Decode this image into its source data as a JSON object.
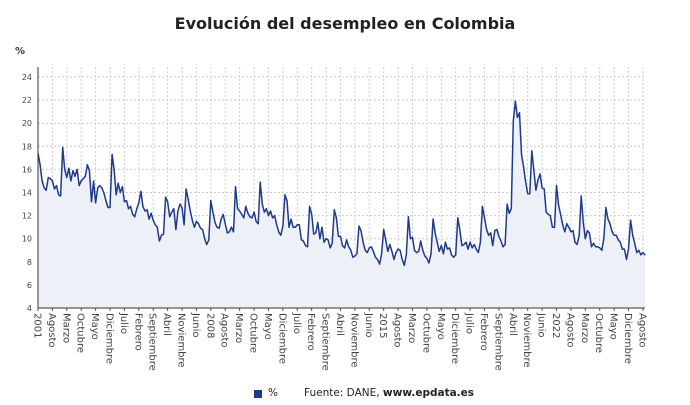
{
  "chart_data": {
    "type": "area",
    "title": "Evolución del desempleo en Colombia",
    "ylabel": "%",
    "ylim": [
      4,
      24
    ],
    "yticks": [
      4,
      6,
      8,
      10,
      12,
      14,
      16,
      18,
      20,
      22,
      24
    ],
    "grid": true,
    "line_color": "#1f3a8a",
    "fill_color": "#eef0f8",
    "x_tick_labels": [
      "2001",
      "Agosto",
      "Marzo",
      "Octubre",
      "Mayo",
      "Diciembre",
      "Julio",
      "Febrero",
      "Septiembre",
      "Abril",
      "Noviembre",
      "Junio",
      "2008",
      "Agosto",
      "Marzo",
      "Octubre",
      "Mayo",
      "Diciembre",
      "Julio",
      "Febrero",
      "Septiembre",
      "Abril",
      "Noviembre",
      "Junio",
      "2015",
      "Agosto",
      "Marzo",
      "Octubre",
      "Mayo",
      "Diciembre",
      "Julio",
      "Febrero",
      "Septiembre",
      "Abril",
      "Noviembre",
      "Junio",
      "2022",
      "Agosto",
      "Marzo",
      "Octubre",
      "Mayo",
      "Diciembre",
      "Agosto"
    ],
    "series": [
      {
        "name": "%",
        "values_by_year": {
          "2001": [
            17.4,
            16.4,
            15.0,
            14.4,
            14.2,
            15.3,
            15.2,
            15.0,
            14.3,
            14.6,
            13.8,
            13.7
          ],
          "2002": [
            17.9,
            16.0,
            15.3,
            16.1,
            15.0,
            15.9,
            15.4,
            16.0,
            14.6,
            15.0,
            15.2,
            15.4
          ],
          "2003": [
            16.4,
            15.9,
            13.2,
            15.0,
            13.1,
            14.4,
            14.6,
            14.4,
            14.0,
            13.3,
            12.7,
            12.7
          ],
          "2004": [
            17.3,
            16.0,
            13.8,
            14.8,
            14.0,
            14.5,
            13.2,
            13.3,
            12.6,
            12.8,
            12.1,
            11.9
          ],
          "2005": [
            12.6,
            13.1,
            14.1,
            12.8,
            12.4,
            12.5,
            11.7,
            12.2,
            11.6,
            11.2,
            11.0,
            9.8
          ],
          "2006": [
            10.3,
            10.4,
            13.6,
            13.2,
            11.9,
            12.3,
            12.6,
            10.8,
            12.4,
            13.0,
            12.7,
            11.2
          ],
          "2007": [
            14.3,
            13.4,
            12.4,
            11.6,
            11.0,
            11.5,
            11.3,
            10.9,
            10.8,
            10.0,
            9.5,
            9.9
          ],
          "2008": [
            13.3,
            12.3,
            11.4,
            11.0,
            10.9,
            11.7,
            12.1,
            11.3,
            10.5,
            10.6,
            11.0,
            10.6
          ],
          "2009": [
            14.5,
            12.6,
            12.4,
            12.1,
            11.8,
            12.8,
            12.2,
            11.9,
            11.8,
            12.3,
            11.5,
            11.3
          ],
          "2010": [
            14.9,
            13.0,
            12.3,
            12.6,
            12.0,
            12.4,
            11.8,
            12.0,
            11.2,
            10.6,
            10.3,
            11.1
          ],
          "2011": [
            13.8,
            13.3,
            11.0,
            11.7,
            11.0,
            11.0,
            11.2,
            11.2,
            9.9,
            9.8,
            9.4,
            9.3
          ],
          "2012": [
            12.8,
            12.1,
            10.4,
            10.5,
            11.4,
            10.0,
            11.0,
            9.7,
            10.0,
            9.9,
            9.2,
            9.6
          ],
          "2013": [
            12.5,
            11.8,
            10.2,
            10.2,
            9.4,
            9.2,
            9.9,
            9.3,
            9.0,
            8.4,
            8.5,
            8.7
          ],
          "2014": [
            11.1,
            10.7,
            9.7,
            9.0,
            8.8,
            9.2,
            9.3,
            8.9,
            8.4,
            8.2,
            7.8,
            8.7
          ],
          "2015": [
            10.8,
            9.9,
            8.9,
            9.5,
            8.9,
            8.2,
            8.8,
            9.1,
            9.0,
            8.2,
            7.7,
            8.6
          ],
          "2016": [
            11.9,
            10.0,
            10.1,
            9.0,
            8.8,
            8.9,
            9.8,
            9.0,
            8.5,
            8.3,
            7.9,
            8.7
          ],
          "2017": [
            11.7,
            10.5,
            9.7,
            8.9,
            9.4,
            8.7,
            9.7,
            9.1,
            9.2,
            8.6,
            8.4,
            8.6
          ],
          "2018": [
            11.8,
            10.8,
            9.4,
            9.5,
            9.7,
            9.1,
            9.7,
            9.2,
            9.5,
            9.1,
            8.8,
            9.7
          ],
          "2019": [
            12.8,
            11.8,
            10.8,
            10.3,
            10.5,
            9.4,
            10.7,
            10.8,
            10.2,
            9.8,
            9.3,
            9.5
          ],
          "2020": [
            13.0,
            12.2,
            12.6,
            20.2,
            21.9,
            20.5,
            20.9,
            17.3,
            16.2,
            14.9,
            13.9,
            13.9
          ],
          "2021": [
            17.6,
            15.9,
            14.2,
            15.1,
            15.6,
            14.4,
            14.3,
            12.3,
            12.1,
            12.0,
            11.0,
            11.0
          ],
          "2022": [
            14.6,
            12.9,
            12.1,
            11.2,
            10.6,
            11.3,
            11.0,
            10.6,
            10.7,
            9.7,
            9.5,
            10.3
          ],
          "2023": [
            13.7,
            11.4,
            10.0,
            10.7,
            10.5,
            9.3,
            9.6,
            9.3,
            9.3,
            9.2,
            9.0,
            10.0
          ],
          "2024": [
            12.7,
            11.7,
            11.3,
            10.6,
            10.3,
            10.3,
            9.9,
            9.7,
            9.1,
            9.1,
            8.2,
            9.1
          ],
          "2025": [
            11.6,
            10.3,
            9.6,
            8.8,
            9.0,
            8.6,
            8.8,
            8.6
          ]
        }
      }
    ]
  },
  "legend": {
    "label": "%",
    "source_prefix": "Fuente: DANE, ",
    "source_site": "www.epdata.es"
  }
}
